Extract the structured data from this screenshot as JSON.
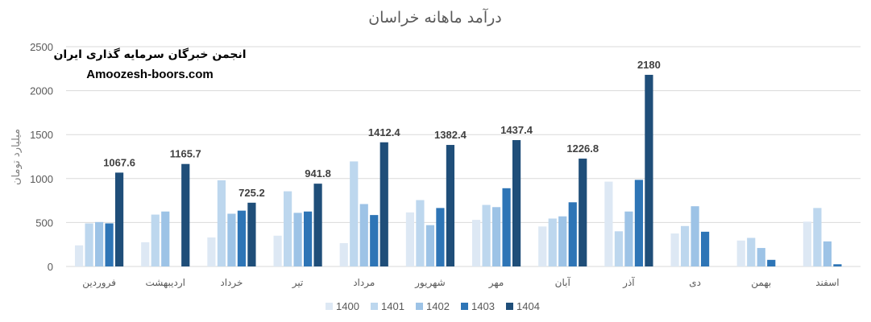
{
  "watermark": {
    "line1": "انجمن خبرگان سرمایه گذاری ایران",
    "line2": "Amoozesh-boors.com"
  },
  "chart_data": {
    "type": "bar",
    "title": "درآمد ماهانه خراسان",
    "ylabel": "میلیارد تومان",
    "xlabel": "",
    "ylim": [
      0,
      2500
    ],
    "yticks": [
      0,
      500,
      1000,
      1500,
      2000,
      2500
    ],
    "grid": true,
    "legend_position": "bottom",
    "categories": [
      "فروردین",
      "اردیبهشت",
      "خرداد",
      "تیر",
      "مرداد",
      "شهریور",
      "مهر",
      "آبان",
      "آذر",
      "دی",
      "بهمن",
      "اسفند"
    ],
    "series": [
      {
        "name": "1400",
        "color": "#dde8f4",
        "values": [
          240,
          275,
          330,
          350,
          265,
          615,
          530,
          455,
          965,
          375,
          295,
          510
        ]
      },
      {
        "name": "1401",
        "color": "#bdd7ee",
        "values": [
          490,
          590,
          980,
          855,
          1195,
          755,
          700,
          545,
          400,
          460,
          325,
          665
        ]
      },
      {
        "name": "1402",
        "color": "#9dc3e6",
        "values": [
          505,
          625,
          600,
          610,
          710,
          470,
          675,
          570,
          625,
          685,
          210,
          285
        ]
      },
      {
        "name": "1403",
        "color": "#2e75b6",
        "values": [
          490,
          null,
          635,
          625,
          585,
          665,
          890,
          730,
          985,
          395,
          75,
          25
        ]
      },
      {
        "name": "1404",
        "color": "#1f4e79",
        "values": [
          1067.6,
          1165.7,
          725.2,
          941.8,
          1412.4,
          1382.4,
          1437.4,
          1226.8,
          2180,
          null,
          null,
          null
        ]
      }
    ],
    "data_labels": {
      "series": "1404",
      "values": [
        "1067.6",
        "1165.7",
        "725.2",
        "941.8",
        "1412.4",
        "1382.4",
        "1437.4",
        "1226.8",
        "2180",
        null,
        null,
        null
      ]
    }
  }
}
